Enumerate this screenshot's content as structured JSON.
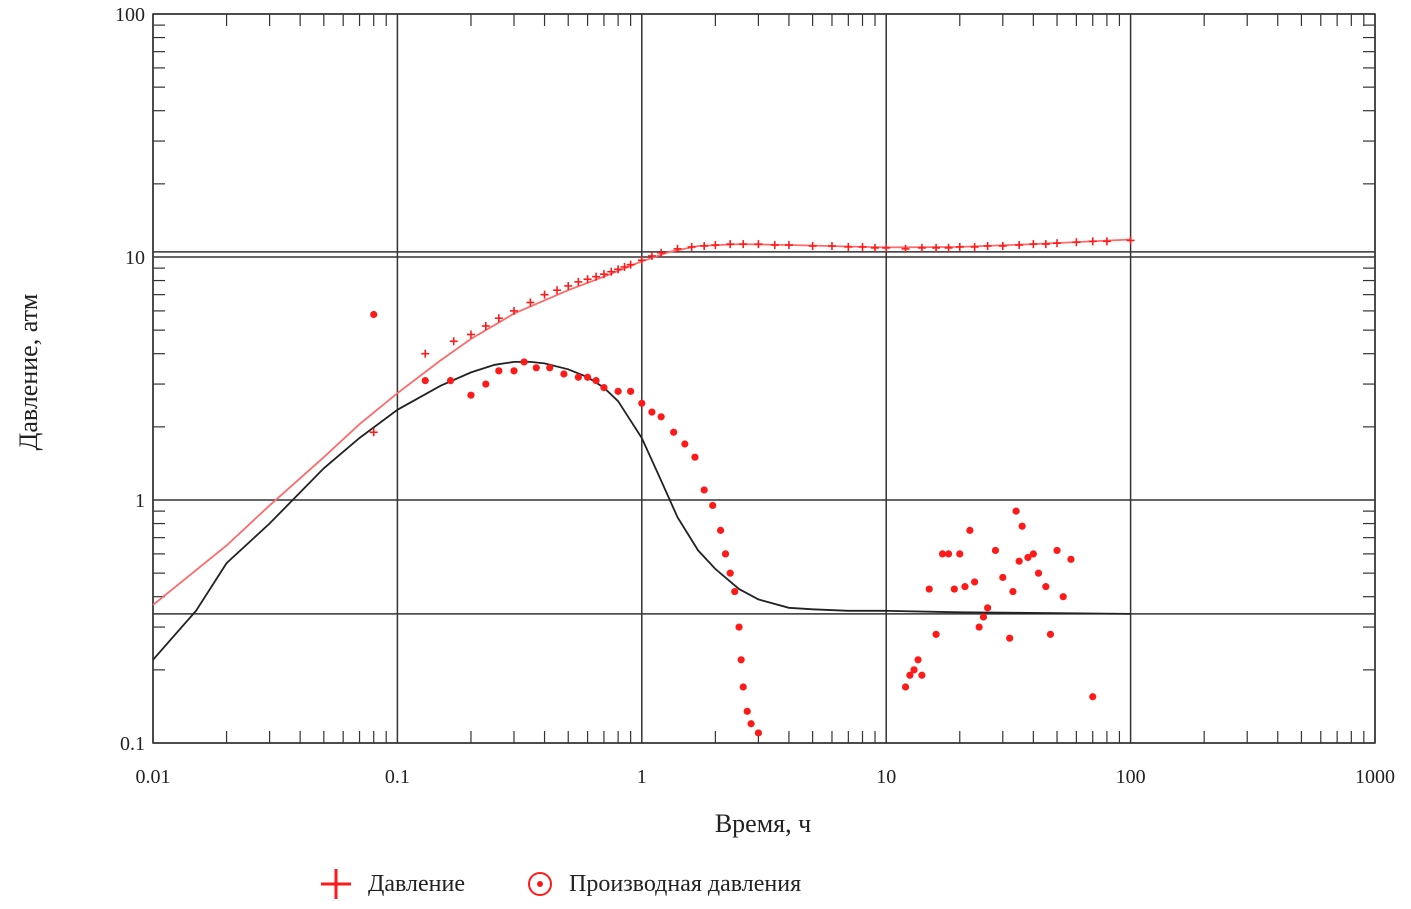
{
  "chart_data": {
    "type": "scatter",
    "title": "",
    "xlabel": "Время, ч",
    "ylabel": "Давление, атм",
    "xscale": "log",
    "yscale": "log",
    "xlim": [
      0.01,
      1000
    ],
    "ylim": [
      0.1,
      100
    ],
    "x_ticks": [
      "0.01",
      "0.1",
      "1",
      "10",
      "100",
      "1000"
    ],
    "y_ticks": [
      "0.1",
      "1",
      "10",
      "100"
    ],
    "grid": true,
    "legend_position": "bottom",
    "colors": {
      "data": "#ff1a1a",
      "model_pressure": "#ff6a6a",
      "model_derivative": "#222222"
    },
    "reference_lines": {
      "horizontal": [
        10.5,
        0.34
      ]
    },
    "legend": [
      {
        "marker": "plus",
        "label": "Давление"
      },
      {
        "marker": "circle-dot",
        "label": "Производная давления"
      }
    ],
    "series": [
      {
        "name": "Давление",
        "marker": "plus",
        "points": [
          [
            0.08,
            1.9
          ],
          [
            0.13,
            4.0
          ],
          [
            0.17,
            4.5
          ],
          [
            0.2,
            4.8
          ],
          [
            0.23,
            5.2
          ],
          [
            0.26,
            5.6
          ],
          [
            0.3,
            6.0
          ],
          [
            0.35,
            6.5
          ],
          [
            0.4,
            7.0
          ],
          [
            0.45,
            7.3
          ],
          [
            0.5,
            7.6
          ],
          [
            0.55,
            7.9
          ],
          [
            0.6,
            8.1
          ],
          [
            0.65,
            8.3
          ],
          [
            0.7,
            8.5
          ],
          [
            0.75,
            8.7
          ],
          [
            0.8,
            8.9
          ],
          [
            0.85,
            9.1
          ],
          [
            0.9,
            9.3
          ],
          [
            1.0,
            9.7
          ],
          [
            1.1,
            10.1
          ],
          [
            1.2,
            10.4
          ],
          [
            1.4,
            10.8
          ],
          [
            1.6,
            11.0
          ],
          [
            1.8,
            11.1
          ],
          [
            2.0,
            11.2
          ],
          [
            2.3,
            11.3
          ],
          [
            2.6,
            11.3
          ],
          [
            3.0,
            11.3
          ],
          [
            3.5,
            11.2
          ],
          [
            4.0,
            11.2
          ],
          [
            5.0,
            11.1
          ],
          [
            6.0,
            11.1
          ],
          [
            7.0,
            11.0
          ],
          [
            8.0,
            11.0
          ],
          [
            9.0,
            10.9
          ],
          [
            10.0,
            10.9
          ],
          [
            12.0,
            10.8
          ],
          [
            14.0,
            10.9
          ],
          [
            16.0,
            10.9
          ],
          [
            18.0,
            10.9
          ],
          [
            20.0,
            11.0
          ],
          [
            23.0,
            11.0
          ],
          [
            26.0,
            11.1
          ],
          [
            30.0,
            11.1
          ],
          [
            35.0,
            11.2
          ],
          [
            40.0,
            11.3
          ],
          [
            45.0,
            11.3
          ],
          [
            50.0,
            11.4
          ],
          [
            60.0,
            11.5
          ],
          [
            70.0,
            11.6
          ],
          [
            80.0,
            11.6
          ],
          [
            100.0,
            11.7
          ]
        ]
      },
      {
        "name": "Производная давления",
        "marker": "circle-dot",
        "points": [
          [
            0.08,
            5.8
          ],
          [
            0.13,
            3.1
          ],
          [
            0.165,
            3.1
          ],
          [
            0.2,
            2.7
          ],
          [
            0.23,
            3.0
          ],
          [
            0.26,
            3.4
          ],
          [
            0.3,
            3.4
          ],
          [
            0.33,
            3.7
          ],
          [
            0.37,
            3.5
          ],
          [
            0.42,
            3.5
          ],
          [
            0.48,
            3.3
          ],
          [
            0.55,
            3.2
          ],
          [
            0.6,
            3.2
          ],
          [
            0.65,
            3.1
          ],
          [
            0.7,
            2.9
          ],
          [
            0.8,
            2.8
          ],
          [
            0.9,
            2.8
          ],
          [
            1.0,
            2.5
          ],
          [
            1.1,
            2.3
          ],
          [
            1.2,
            2.2
          ],
          [
            1.35,
            1.9
          ],
          [
            1.5,
            1.7
          ],
          [
            1.65,
            1.5
          ],
          [
            1.8,
            1.1
          ],
          [
            1.95,
            0.95
          ],
          [
            2.1,
            0.75
          ],
          [
            2.2,
            0.6
          ],
          [
            2.3,
            0.5
          ],
          [
            2.4,
            0.42
          ],
          [
            2.5,
            0.3
          ],
          [
            2.55,
            0.22
          ],
          [
            2.6,
            0.17
          ],
          [
            2.7,
            0.135
          ],
          [
            2.8,
            0.12
          ],
          [
            3.0,
            0.11
          ],
          [
            12.0,
            0.17
          ],
          [
            12.5,
            0.19
          ],
          [
            13.0,
            0.2
          ],
          [
            13.5,
            0.22
          ],
          [
            14.0,
            0.19
          ],
          [
            15.0,
            0.43
          ],
          [
            16.0,
            0.28
          ],
          [
            17.0,
            0.6
          ],
          [
            18.0,
            0.6
          ],
          [
            19.0,
            0.43
          ],
          [
            20.0,
            0.6
          ],
          [
            21.0,
            0.44
          ],
          [
            22.0,
            0.75
          ],
          [
            23.0,
            0.46
          ],
          [
            24.0,
            0.3
          ],
          [
            25.0,
            0.33
          ],
          [
            26.0,
            0.36
          ],
          [
            28.0,
            0.62
          ],
          [
            30.0,
            0.48
          ],
          [
            32.0,
            0.27
          ],
          [
            33.0,
            0.42
          ],
          [
            34.0,
            0.9
          ],
          [
            35.0,
            0.56
          ],
          [
            36.0,
            0.78
          ],
          [
            38.0,
            0.58
          ],
          [
            40.0,
            0.6
          ],
          [
            42.0,
            0.5
          ],
          [
            45.0,
            0.44
          ],
          [
            47.0,
            0.28
          ],
          [
            50.0,
            0.62
          ],
          [
            53.0,
            0.4
          ],
          [
            57.0,
            0.57
          ],
          [
            70.0,
            0.155
          ]
        ]
      },
      {
        "name": "",
        "type": "line",
        "color": "#ff6a6a",
        "points": [
          [
            0.01,
            0.37
          ],
          [
            0.02,
            0.65
          ],
          [
            0.03,
            0.95
          ],
          [
            0.05,
            1.5
          ],
          [
            0.07,
            2.05
          ],
          [
            0.1,
            2.75
          ],
          [
            0.15,
            3.75
          ],
          [
            0.2,
            4.6
          ],
          [
            0.3,
            5.85
          ],
          [
            0.5,
            7.3
          ],
          [
            0.7,
            8.3
          ],
          [
            1.0,
            9.6
          ],
          [
            1.3,
            10.5
          ],
          [
            1.7,
            11.1
          ],
          [
            2.5,
            11.3
          ],
          [
            4.0,
            11.2
          ],
          [
            7.0,
            11.05
          ],
          [
            10.0,
            10.95
          ],
          [
            20.0,
            11.0
          ],
          [
            40.0,
            11.3
          ],
          [
            100.0,
            11.8
          ]
        ]
      },
      {
        "name": "",
        "type": "line",
        "color": "#222222",
        "points": [
          [
            0.01,
            0.22
          ],
          [
            0.015,
            0.35
          ],
          [
            0.02,
            0.55
          ],
          [
            0.03,
            0.8
          ],
          [
            0.05,
            1.35
          ],
          [
            0.07,
            1.8
          ],
          [
            0.1,
            2.35
          ],
          [
            0.15,
            2.95
          ],
          [
            0.2,
            3.35
          ],
          [
            0.25,
            3.6
          ],
          [
            0.3,
            3.7
          ],
          [
            0.35,
            3.7
          ],
          [
            0.4,
            3.65
          ],
          [
            0.5,
            3.45
          ],
          [
            0.6,
            3.2
          ],
          [
            0.7,
            2.9
          ],
          [
            0.8,
            2.55
          ],
          [
            1.0,
            1.8
          ],
          [
            1.2,
            1.2
          ],
          [
            1.4,
            0.85
          ],
          [
            1.7,
            0.62
          ],
          [
            2.0,
            0.52
          ],
          [
            2.5,
            0.43
          ],
          [
            3.0,
            0.39
          ],
          [
            4.0,
            0.36
          ],
          [
            5.0,
            0.355
          ],
          [
            7.0,
            0.35
          ],
          [
            10.0,
            0.35
          ],
          [
            20.0,
            0.345
          ],
          [
            50.0,
            0.342
          ],
          [
            100.0,
            0.34
          ]
        ]
      }
    ]
  }
}
